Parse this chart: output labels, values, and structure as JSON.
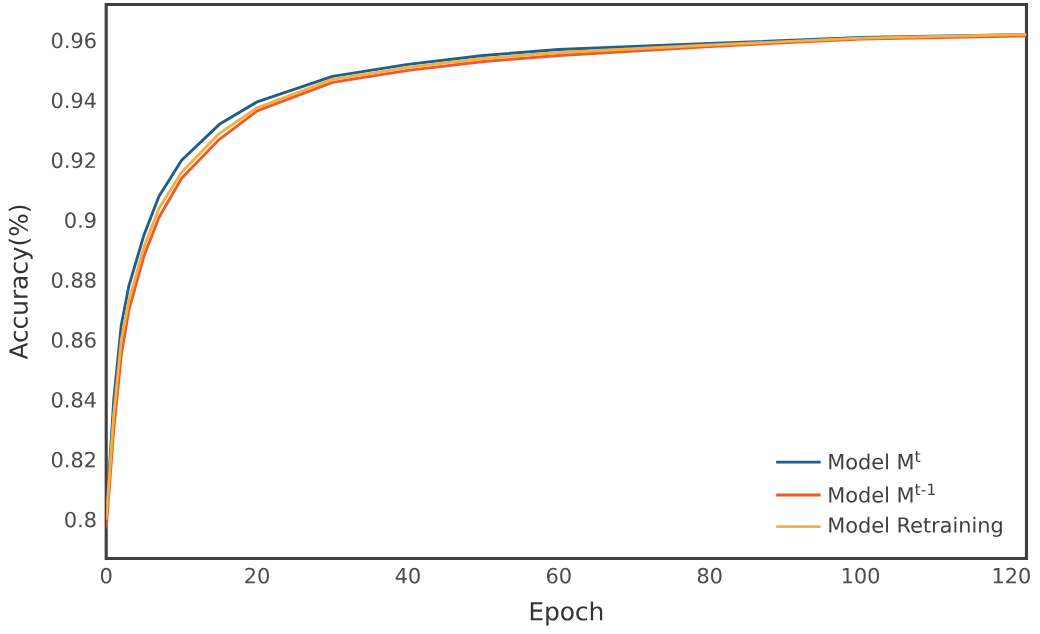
{
  "chart_data": {
    "type": "line",
    "xlabel": "Epoch",
    "ylabel": "Accuracy(%)",
    "x": [
      0,
      1,
      2,
      3,
      5,
      7,
      10,
      15,
      20,
      30,
      40,
      50,
      60,
      80,
      100,
      122
    ],
    "xlim": [
      0,
      122
    ],
    "ylim": [
      0.787,
      0.972
    ],
    "xticks": [
      0,
      20,
      40,
      60,
      80,
      100,
      120
    ],
    "yticks": [
      0.8,
      0.82,
      0.84,
      0.86,
      0.88,
      0.9,
      0.92,
      0.94,
      0.96
    ],
    "legend": "bottom right",
    "grid": false,
    "marker": "none",
    "line_style": "solid",
    "series": [
      {
        "name": "Model M$^{t}$",
        "color": "#1f5f8b",
        "values": [
          0.8,
          0.84,
          0.865,
          0.878,
          0.895,
          0.908,
          0.92,
          0.932,
          0.9395,
          0.948,
          0.952,
          0.955,
          0.957,
          0.959,
          0.961,
          0.962
        ]
      },
      {
        "name": "Model M$^{t-1}$",
        "color": "#f05a28",
        "values": [
          0.797,
          0.83,
          0.855,
          0.87,
          0.888,
          0.901,
          0.914,
          0.927,
          0.9365,
          0.946,
          0.95,
          0.953,
          0.955,
          0.958,
          0.9605,
          0.9615
        ]
      },
      {
        "name": "Model Retraining",
        "color": "#f5b041",
        "values": [
          0.8,
          0.835,
          0.86,
          0.873,
          0.891,
          0.904,
          0.916,
          0.929,
          0.9375,
          0.947,
          0.951,
          0.954,
          0.956,
          0.9585,
          0.9608,
          0.962
        ]
      }
    ]
  }
}
